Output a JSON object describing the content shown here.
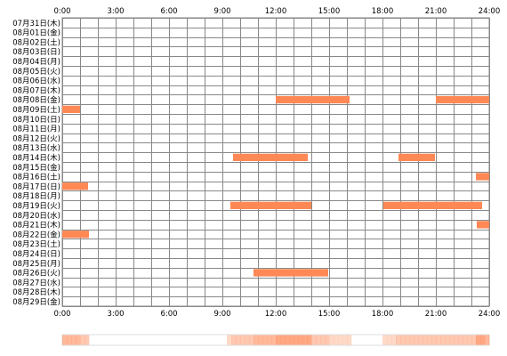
{
  "chart_data": {
    "type": "timeline",
    "x_ticks": [
      "0:00",
      "3:00",
      "6:00",
      "9:00",
      "12:00",
      "15:00",
      "18:00",
      "21:00",
      "24:00"
    ],
    "xlim_hours": [
      0,
      24
    ],
    "grid": true,
    "rows": [
      "07月31日(木)",
      "08月01日(金)",
      "08月02日(土)",
      "08月03日(日)",
      "08月04日(月)",
      "08月05日(火)",
      "08月06日(水)",
      "08月07日(木)",
      "08月08日(金)",
      "08月09日(土)",
      "08月10日(日)",
      "08月11日(月)",
      "08月12日(火)",
      "08月13日(水)",
      "08月14日(木)",
      "08月15日(金)",
      "08月16日(土)",
      "08月17日(日)",
      "08月18日(月)",
      "08月19日(火)",
      "08月20日(水)",
      "08月21日(木)",
      "08月22日(金)",
      "08月23日(土)",
      "08月24日(日)",
      "08月25日(月)",
      "08月26日(火)",
      "08月27日(水)",
      "08月28日(木)",
      "08月29日(金)"
    ],
    "segments": [
      {
        "row": 8,
        "start": 12.0,
        "end": 16.15
      },
      {
        "row": 8,
        "start": 21.0,
        "end": 24.0
      },
      {
        "row": 9,
        "start": 0.0,
        "end": 1.0
      },
      {
        "row": 14,
        "start": 9.6,
        "end": 13.8
      },
      {
        "row": 14,
        "start": 18.9,
        "end": 20.95
      },
      {
        "row": 16,
        "start": 23.25,
        "end": 24.0
      },
      {
        "row": 17,
        "start": 0.0,
        "end": 1.45
      },
      {
        "row": 19,
        "start": 9.45,
        "end": 14.0
      },
      {
        "row": 19,
        "start": 18.05,
        "end": 23.6
      },
      {
        "row": 21,
        "start": 23.3,
        "end": 24.0
      },
      {
        "row": 22,
        "start": 0.0,
        "end": 1.5
      },
      {
        "row": 26,
        "start": 10.75,
        "end": 14.95
      }
    ],
    "bar_color": "#ff8855",
    "grid_color": "#888888"
  }
}
